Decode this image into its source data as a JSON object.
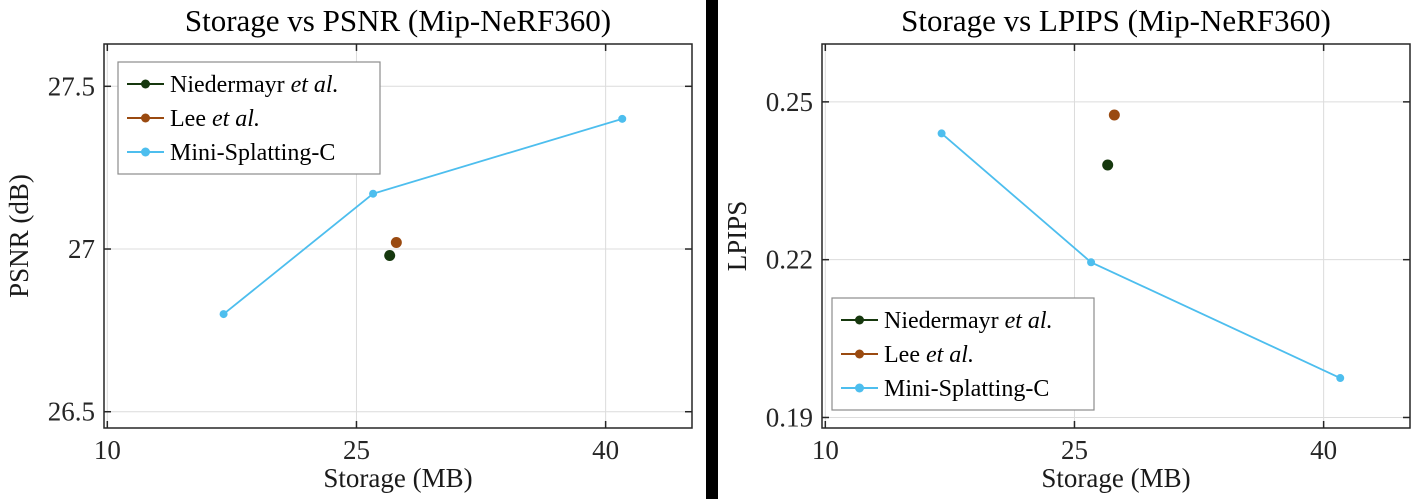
{
  "page": {
    "background": "#ffffff",
    "divider_color": "#000000"
  },
  "chart_data": [
    {
      "type": "line",
      "title": "Storage vs PSNR (Mip-NeRF360)",
      "xlabel": "Storage (MB)",
      "ylabel": "PSNR (dB)",
      "xlim": [
        9.8,
        45.2
      ],
      "ylim": [
        26.45,
        27.63
      ],
      "xticks": [
        10,
        25,
        40
      ],
      "yticks": [
        26.5,
        27,
        27.5
      ],
      "grid": true,
      "legend_position": "top-left",
      "series": [
        {
          "name": "Niedermayr et al.",
          "type": "scatter",
          "color": "#16380e",
          "points": [
            [
              27.0,
              26.98
            ]
          ]
        },
        {
          "name": "Lee et al.",
          "type": "scatter",
          "color": "#9a4a10",
          "points": [
            [
              27.4,
              27.02
            ]
          ]
        },
        {
          "name": "Mini-Splatting-C",
          "type": "line",
          "color": "#4DBEEE",
          "points": [
            [
              17,
              26.8
            ],
            [
              26,
              27.17
            ],
            [
              41,
              27.4
            ]
          ]
        }
      ]
    },
    {
      "type": "line",
      "title": "Storage vs LPIPS (Mip-NeRF360)",
      "xlabel": "Storage (MB)",
      "ylabel": "LPIPS",
      "xlim": [
        9.8,
        45.2
      ],
      "ylim": [
        0.188,
        0.261
      ],
      "xticks": [
        10,
        25,
        40
      ],
      "yticks": [
        0.19,
        0.22,
        0.25
      ],
      "grid": true,
      "legend_position": "bottom-left",
      "series": [
        {
          "name": "Niedermayr et al.",
          "type": "scatter",
          "color": "#16380e",
          "points": [
            [
              27.0,
              0.238
            ]
          ]
        },
        {
          "name": "Lee et al.",
          "type": "scatter",
          "color": "#9a4a10",
          "points": [
            [
              27.4,
              0.2475
            ]
          ]
        },
        {
          "name": "Mini-Splatting-C",
          "type": "line",
          "color": "#4DBEEE",
          "points": [
            [
              17,
              0.244
            ],
            [
              26,
              0.2195
            ],
            [
              41,
              0.1975
            ]
          ]
        }
      ]
    }
  ],
  "style": {
    "grid_color": "#dcdcdc",
    "axis_color": "#262626",
    "legend_border_color": "#8c8c8c",
    "legend_background": "#ffffff"
  }
}
